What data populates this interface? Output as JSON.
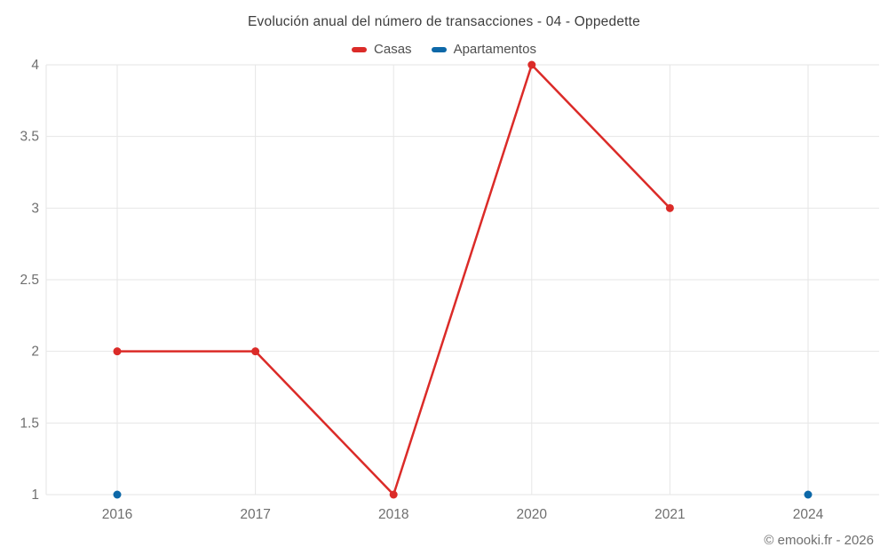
{
  "chart": {
    "title": "Evolución anual del número de transacciones - 04 - Oppedette",
    "footer": "© emooki.fr - 2026"
  },
  "chart_data": {
    "type": "line",
    "title": "Evolución anual del número de transacciones - 04 - Oppedette",
    "categories": [
      "2016",
      "2017",
      "2018",
      "2020",
      "2021",
      "2024"
    ],
    "series": [
      {
        "name": "Casas",
        "color": "#db2b28",
        "values": [
          2,
          2,
          1,
          4,
          3,
          null
        ]
      },
      {
        "name": "Apartamentos",
        "color": "#0d68a8",
        "values": [
          1,
          null,
          null,
          null,
          null,
          1
        ]
      }
    ],
    "yticks": [
      1,
      1.5,
      2,
      2.5,
      3,
      3.5,
      4
    ],
    "ylim": [
      1,
      4
    ],
    "xlabel": "",
    "ylabel": "",
    "grid": true,
    "legend_position": "top",
    "colors": {
      "grid": "#e6e6e6",
      "tick_label": "#6f6f6f",
      "title_text": "#3d3d3d"
    }
  }
}
